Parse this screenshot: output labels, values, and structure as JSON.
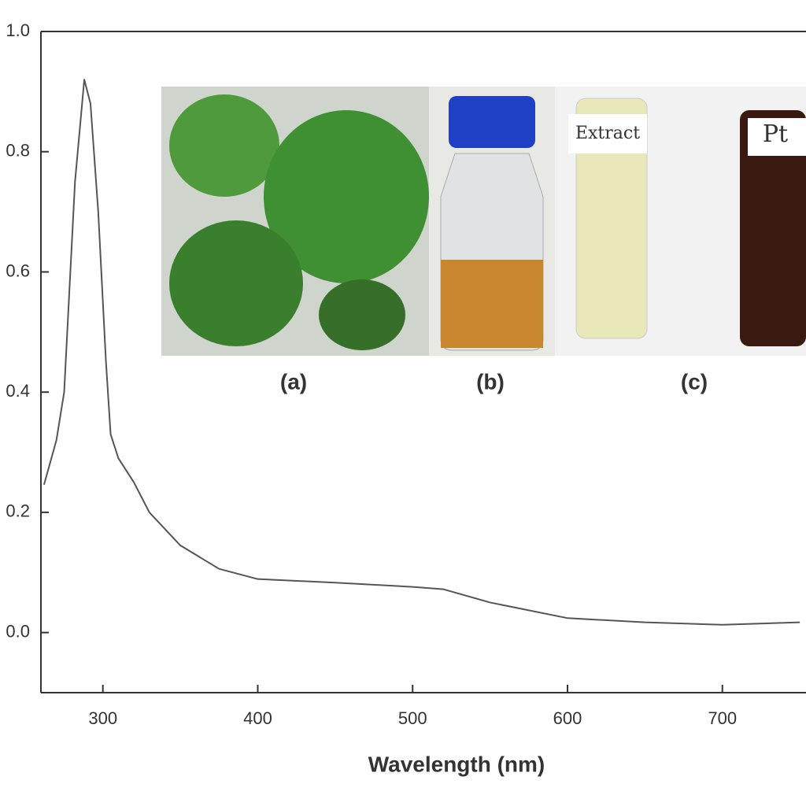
{
  "chart_data": {
    "type": "line",
    "x_label": "Wavelength (nm)",
    "x": [
      262,
      270,
      275,
      282,
      288,
      292,
      297,
      302,
      305,
      310,
      320,
      330,
      350,
      375,
      400,
      450,
      500,
      520,
      550,
      600,
      650,
      700,
      750
    ],
    "values": [
      0.246,
      0.32,
      0.4,
      0.75,
      0.92,
      0.88,
      0.7,
      0.45,
      0.33,
      0.29,
      0.25,
      0.2,
      0.145,
      0.106,
      0.089,
      0.083,
      0.076,
      0.072,
      0.05,
      0.024,
      0.017,
      0.013,
      0.017
    ],
    "color": "#555555",
    "xlim": [
      260,
      754
    ],
    "ylim": [
      -0.1,
      1.0
    ],
    "xticks": [
      300,
      400,
      500,
      600,
      700
    ],
    "yticks": [
      {
        "value": 0,
        "label": "0.0"
      },
      {
        "value": 0.2,
        "label": "0.2"
      },
      {
        "value": 0.4,
        "label": "0.4"
      },
      {
        "value": 0.6,
        "label": "0.6"
      },
      {
        "value": 0.8,
        "label": "0.8"
      },
      {
        "value": 1,
        "label": "1.0"
      }
    ],
    "grid": false,
    "inset": {
      "labels": [
        "(a)",
        "(b)",
        "(c)"
      ],
      "vial_texts": [
        "Extract",
        "Pt"
      ]
    }
  }
}
